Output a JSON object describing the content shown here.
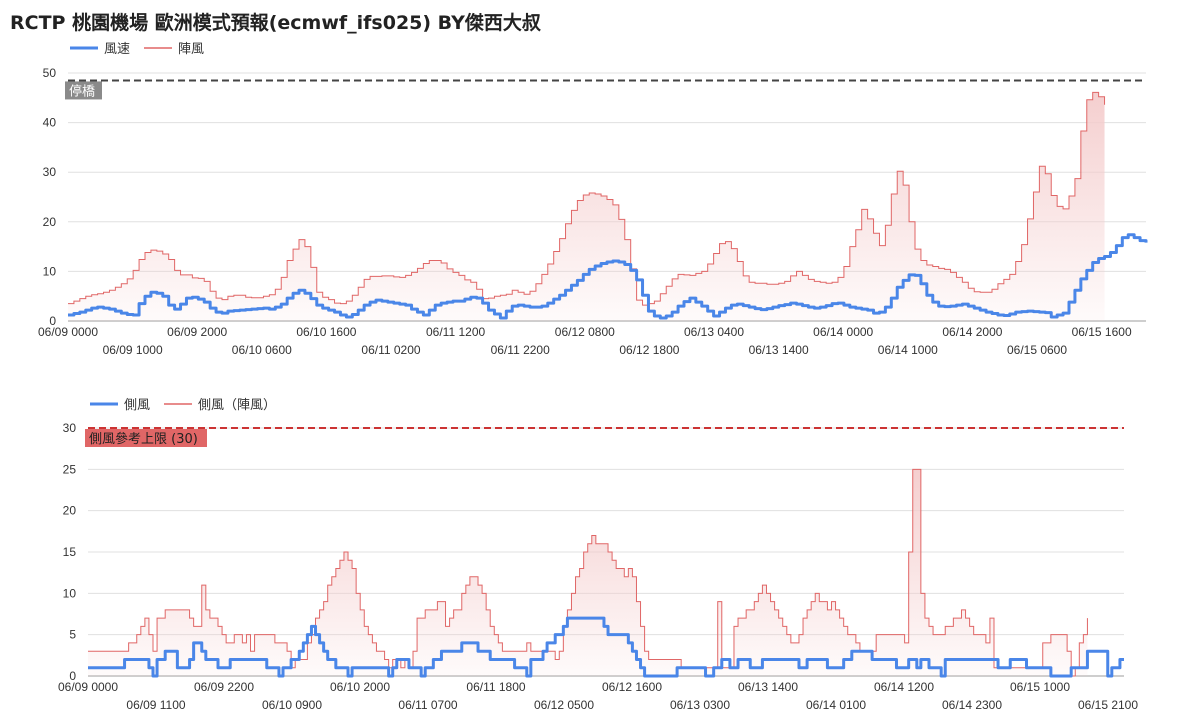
{
  "title": "RCTP 桃園機場 歐洲模式預報(ecmwf_ifs025)  BY傑西大叔",
  "colors": {
    "primary": "#4a86e8",
    "gust": "#e06666",
    "gust_fill": "#f4cccc",
    "grid": "#e0e0e0",
    "ref1": "#444444",
    "ref2": "#cc3333",
    "ref2_label_bg": "#e06666",
    "ref1_label_bg": "#8a8a8a"
  },
  "chart_data": [
    {
      "type": "area",
      "legend": [
        "風速",
        "陣風"
      ],
      "ylim": [
        0,
        50
      ],
      "yticks": [
        0,
        10,
        20,
        30,
        40,
        50
      ],
      "x_tick_labels_row1": [
        "06/09 0000",
        "06/09 2000",
        "06/10 1600",
        "06/11 1200",
        "06/12 0800",
        "06/13 0400",
        "06/14 0000",
        "06/14 2000",
        "06/15 1600"
      ],
      "x_tick_labels_row2": [
        "06/09 1000",
        "06/10 0600",
        "06/11 0200",
        "06/11 2200",
        "06/12 1800",
        "06/13 1400",
        "06/14 1000",
        "06/15 0600"
      ],
      "reference_line": {
        "value": 48.5,
        "label": "停橋"
      },
      "series": [
        {
          "name": "風速",
          "values": [
            1.2,
            1.5,
            1.8,
            2.2,
            2.6,
            2.8,
            2.6,
            2.4,
            2,
            1.6,
            1.3,
            1.2,
            3.5,
            5,
            5.8,
            5.6,
            5,
            3.2,
            2.4,
            3.4,
            4.6,
            4.8,
            4.4,
            3.8,
            2.6,
            1.8,
            1.6,
            2,
            2.1,
            2.2,
            2.3,
            2.4,
            2.5,
            2.6,
            2.4,
            2.8,
            3.4,
            4.6,
            5.6,
            6.2,
            5.6,
            4.5,
            3.2,
            2.6,
            2.2,
            1.8,
            1.2,
            0.8,
            1.3,
            2.2,
            3.2,
            3.8,
            4.2,
            4,
            3.8,
            3.6,
            3.4,
            3.2,
            2.4,
            1.8,
            1.2,
            2.2,
            3.2,
            3.6,
            3.8,
            4,
            4,
            4.4,
            4.8,
            4.6,
            3.6,
            2.2,
            1.4,
            0.6,
            2,
            3,
            3.2,
            3,
            2.8,
            2.8,
            3,
            3.6,
            4.4,
            5.2,
            6.2,
            7.2,
            8.2,
            9.4,
            10.4,
            11.1,
            11.6,
            11.9,
            12.1,
            11.9,
            11.4,
            10.2,
            8.3,
            5.2,
            2,
            1,
            0.6,
            1,
            1.8,
            3,
            3.9,
            4.6,
            3.8,
            3,
            2,
            1,
            1.8,
            2.6,
            3.2,
            3.4,
            3.1,
            2.8,
            2.5,
            2.3,
            2.5,
            2.8,
            3.1,
            3.3,
            3.6,
            3.4,
            3.1,
            2.8,
            2.6,
            2.8,
            3.1,
            3.5,
            3.6,
            3.2,
            2.8,
            2.6,
            2.4,
            2.2,
            1.6,
            1.8,
            2.8,
            4.6,
            6.8,
            8.2,
            9.3,
            9.2,
            7.5,
            5.2,
            3.8,
            3,
            2.9,
            3,
            3.2,
            3.4,
            3,
            2.6,
            2.2,
            1.8,
            1.5,
            1.2,
            1.1,
            1.4,
            1.8,
            1.9,
            2,
            1.9,
            1.8,
            1.7,
            0.8,
            1.2,
            1.6,
            3.8,
            6.2,
            8.5,
            10.2,
            11.8,
            12.6,
            13,
            13.8,
            15.2,
            16.8,
            17.4,
            16.8,
            16.2,
            15.8
          ]
        },
        {
          "name": "陣風",
          "values": [
            3.5,
            4,
            4.5,
            5,
            5.3,
            5.5,
            5.8,
            6.2,
            6.8,
            7.5,
            8.5,
            10.2,
            12.4,
            13.8,
            14.3,
            14.1,
            13.5,
            12.4,
            10.2,
            9.3,
            9.3,
            8.7,
            8.6,
            8,
            6,
            4.6,
            4.3,
            5,
            5.2,
            5.2,
            4.8,
            4.7,
            4.7,
            5,
            5.3,
            6.4,
            8.8,
            12.2,
            14.5,
            16.4,
            15,
            10.8,
            5.8,
            4.8,
            4.3,
            3.6,
            3.5,
            4,
            5.2,
            6.8,
            8.4,
            9,
            9,
            9.1,
            9.1,
            8.9,
            8.8,
            9.2,
            9.8,
            10.6,
            11.6,
            12.2,
            12.2,
            11.7,
            10.5,
            9.8,
            9.2,
            8.3,
            7.8,
            6.4,
            4.5,
            4.6,
            5,
            5.2,
            5.4,
            6.2,
            5.8,
            5.4,
            6,
            7.5,
            9.4,
            11.5,
            14,
            16.6,
            19.6,
            22.3,
            24.3,
            25.4,
            25.8,
            25.6,
            25.2,
            24.5,
            23.4,
            20.5,
            16.4,
            10.5,
            4.2,
            3.2,
            3.5,
            4,
            5.5,
            7,
            8.5,
            9.4,
            9.3,
            9.2,
            9.6,
            10,
            11.5,
            13.6,
            15.6,
            16,
            14.6,
            12,
            9.1,
            7.8,
            7.6,
            7.6,
            7.4,
            7.4,
            7.6,
            8,
            9.1,
            10,
            9.2,
            8.4,
            8,
            7.8,
            7.6,
            7.8,
            8.8,
            11,
            15,
            18.4,
            22.5,
            20.6,
            17.7,
            15.2,
            19.3,
            25.6,
            30.2,
            27.4,
            20,
            14.5,
            12.2,
            11.3,
            11,
            10.6,
            10.4,
            9.8,
            8.8,
            7.8,
            6.6,
            5.9,
            5.8,
            5.8,
            6.4,
            7.5,
            8.4,
            9.4,
            12,
            15.4,
            20.6,
            26,
            31.2,
            29.7,
            25.3,
            23.1,
            22.6,
            25.2,
            28.7,
            38.3,
            44.6,
            46.1,
            45.2,
            43.6
          ]
        }
      ]
    },
    {
      "type": "area",
      "legend": [
        "側風",
        "側風（陣風）"
      ],
      "ylim": [
        0,
        30
      ],
      "yticks": [
        0,
        5,
        10,
        15,
        20,
        25,
        30
      ],
      "x_tick_labels_row1": [
        "06/09 0000",
        "06/09 2200",
        "06/10 2000",
        "06/11 1800",
        "06/12 1600",
        "06/13 1400",
        "06/14 1200",
        "06/15 1000"
      ],
      "x_tick_labels_row2": [
        "06/09 1100",
        "06/10 0900",
        "06/11 0700",
        "06/12 0500",
        "06/13 0300",
        "06/14 0100",
        "06/14 2300",
        "06/15 2100"
      ],
      "reference_line": {
        "value": 30,
        "label": "側風參考上限 (30)"
      },
      "series": [
        {
          "name": "側風",
          "values": [
            1,
            1,
            1,
            1,
            1,
            1,
            1,
            1,
            1,
            2,
            2,
            2,
            2,
            2,
            2,
            1,
            0,
            2,
            2,
            3,
            3,
            3,
            1,
            1,
            1,
            2,
            4,
            4,
            3,
            2,
            2,
            2,
            1,
            1,
            1,
            2,
            2,
            2,
            2,
            2,
            2,
            2,
            2,
            2,
            1,
            1,
            1,
            0,
            1,
            1,
            2,
            2,
            3,
            4,
            5,
            6,
            5,
            4,
            3,
            2,
            2,
            1,
            1,
            1,
            0,
            1,
            1,
            1,
            1,
            1,
            1,
            1,
            1,
            1,
            0,
            1,
            2,
            2,
            2,
            1,
            1,
            1,
            0,
            1,
            1,
            2,
            2,
            3,
            3,
            3,
            3,
            3,
            4,
            4,
            4,
            4,
            3,
            3,
            3,
            2,
            2,
            2,
            2,
            2,
            2,
            1,
            1,
            1,
            0,
            2,
            2,
            2,
            3,
            4,
            4,
            5,
            5,
            6,
            7,
            7,
            7,
            7,
            7,
            7,
            7,
            7,
            7,
            6,
            5,
            5,
            5,
            5,
            5,
            4,
            3,
            2,
            1,
            0,
            0,
            0,
            0,
            0,
            0,
            0,
            0,
            1,
            1,
            1,
            1,
            1,
            1,
            1,
            0,
            0,
            1,
            1,
            2,
            2,
            1,
            1,
            2,
            2,
            2,
            1,
            1,
            1,
            2,
            2,
            2,
            2,
            2,
            2,
            2,
            2,
            2,
            1,
            1,
            2,
            2,
            2,
            2,
            2,
            1,
            1,
            1,
            1,
            2,
            2,
            3,
            3,
            3,
            3,
            3,
            2,
            2,
            2,
            2,
            2,
            2,
            1,
            1,
            1,
            2,
            2,
            1,
            2,
            2,
            1,
            1,
            1,
            0,
            2,
            2,
            2,
            2,
            2,
            2,
            2,
            2,
            2,
            2,
            2,
            2,
            2,
            1,
            1,
            1,
            2,
            2,
            2,
            2,
            1,
            1,
            1,
            1,
            1,
            1,
            0,
            0,
            0,
            0,
            0,
            1,
            1,
            1,
            1,
            3,
            3,
            3,
            3,
            3,
            0,
            1,
            1,
            2,
            2
          ]
        },
        {
          "name": "側風（陣風）",
          "values": [
            3,
            3,
            3,
            3,
            3,
            3,
            3,
            3,
            3,
            3,
            4,
            4,
            5,
            6,
            7,
            5,
            3,
            7,
            7,
            8,
            8,
            8,
            8,
            8,
            8,
            7,
            6,
            6,
            11,
            8,
            7,
            7,
            6,
            5,
            4,
            4,
            5,
            5,
            4,
            5,
            3,
            5,
            5,
            5,
            5,
            5,
            4,
            4,
            4,
            3,
            1,
            2,
            2,
            2,
            4,
            5,
            7,
            8,
            9,
            11,
            12,
            13,
            14,
            15,
            14,
            13,
            10,
            8,
            6,
            5,
            4,
            3,
            3,
            2,
            1,
            2,
            2,
            1,
            2,
            1,
            3,
            7,
            7,
            8,
            8,
            8,
            9,
            9,
            6,
            7,
            8,
            8,
            10,
            11,
            12,
            12,
            11,
            10,
            8,
            6,
            5,
            4,
            3,
            3,
            3,
            3,
            3,
            3,
            4,
            3,
            3,
            3,
            3,
            3,
            3,
            2,
            3,
            6,
            8,
            10,
            12,
            13,
            15,
            16,
            17,
            16,
            16,
            16,
            15,
            14,
            13,
            13,
            12,
            13,
            12,
            9,
            6,
            3,
            2,
            2,
            2,
            2,
            2,
            2,
            2,
            2,
            1,
            1,
            1,
            1,
            1,
            1,
            1,
            1,
            1,
            9,
            1,
            1,
            1,
            6,
            7,
            7,
            8,
            8,
            9,
            10,
            11,
            10,
            9,
            8,
            7,
            6,
            5,
            4,
            4,
            5,
            7,
            8,
            9,
            10,
            9,
            9,
            8,
            9,
            8,
            7,
            6,
            5,
            5,
            4,
            3,
            3,
            3,
            3,
            5,
            5,
            5,
            5,
            5,
            5,
            5,
            4,
            15,
            25,
            25,
            10,
            7,
            6,
            5,
            5,
            5,
            6,
            6,
            7,
            7,
            8,
            7,
            6,
            5,
            5,
            5,
            4,
            7,
            1,
            1,
            1,
            1,
            1,
            1,
            1,
            1,
            1,
            1,
            1,
            1,
            4,
            4,
            5,
            5,
            5,
            5,
            3,
            0,
            1,
            4,
            5,
            7
          ]
        }
      ]
    }
  ]
}
